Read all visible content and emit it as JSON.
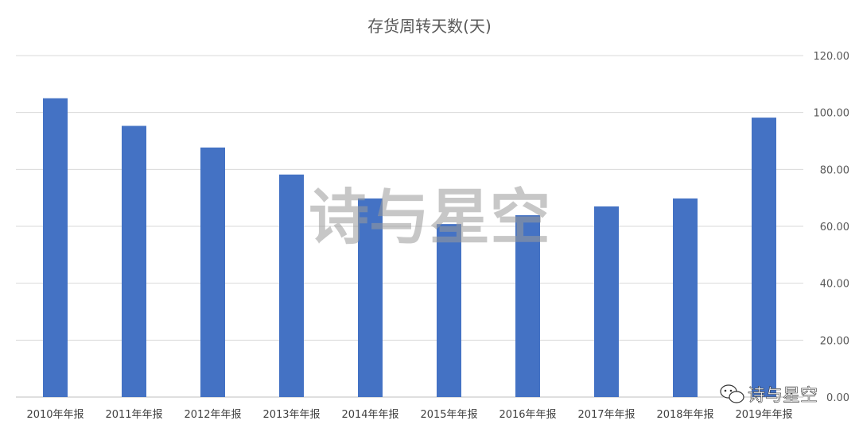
{
  "chart_data": {
    "type": "bar",
    "title": "存货周转天数(天)",
    "categories": [
      "2010年年报",
      "2011年年报",
      "2012年年报",
      "2013年年报",
      "2014年年报",
      "2015年年报",
      "2016年年报",
      "2017年年报",
      "2018年年报",
      "2019年年报"
    ],
    "values": [
      105.0,
      95.3,
      87.7,
      78.2,
      69.8,
      60.8,
      63.9,
      67.0,
      69.8,
      98.2
    ],
    "ylim": [
      0,
      120
    ],
    "yticks": [
      "0.00",
      "20.00",
      "40.00",
      "60.00",
      "80.00",
      "100.00",
      "120.00"
    ],
    "yaxis_side": "right",
    "grid": true,
    "bar_color": "#4472c4"
  },
  "watermark": {
    "center_text": "诗与星空",
    "corner_text": "诗与星空",
    "corner_icon": "wechat-icon"
  }
}
